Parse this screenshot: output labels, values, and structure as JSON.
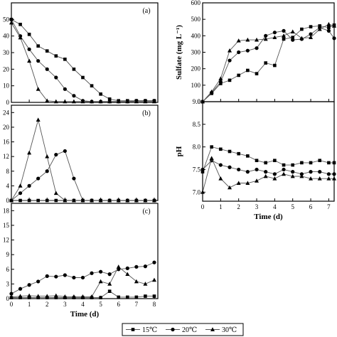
{
  "chart_data": [
    {
      "id": "a",
      "type": "line",
      "panel_label": "(a)",
      "xlim": [
        0,
        8.2
      ],
      "ylim": [
        0,
        60
      ],
      "yticks": [
        "0",
        "10",
        "20",
        "30",
        "40",
        "50"
      ],
      "xticks": [],
      "xlabel": "",
      "ylabel": "",
      "series": [
        {
          "name": "15℃",
          "x": [
            0,
            0.5,
            1,
            1.5,
            2,
            2.5,
            3,
            3.5,
            4,
            4.5,
            5,
            5.5,
            6,
            6.5,
            7,
            7.5,
            8
          ],
          "values": [
            50,
            47,
            41,
            34,
            31,
            28,
            26,
            20,
            15,
            10,
            5,
            2,
            1,
            1,
            1,
            1,
            1
          ]
        },
        {
          "name": "20℃",
          "x": [
            0,
            0.5,
            1,
            1.5,
            2,
            2.5,
            3,
            3.5,
            4,
            4.5,
            5,
            5.5,
            6,
            6.5,
            7,
            7.5,
            8
          ],
          "values": [
            50,
            40,
            32,
            25,
            20,
            15,
            8,
            4,
            1,
            0.5,
            0.5,
            0.5,
            0.5,
            0.5,
            1,
            1,
            1
          ]
        },
        {
          "name": "30℃",
          "x": [
            0,
            0.5,
            1,
            1.5,
            2,
            2.5,
            3,
            3.5,
            4,
            4.5,
            5,
            5.5,
            6,
            6.5,
            7,
            7.5,
            8
          ],
          "values": [
            48,
            39,
            25,
            8,
            1,
            0.5,
            0.5,
            0.5,
            0.5,
            0.5,
            0.5,
            0.5,
            0.5,
            0.5,
            0.5,
            0.5,
            0.5
          ]
        }
      ]
    },
    {
      "id": "b",
      "type": "line",
      "panel_label": "(b)",
      "xlim": [
        0,
        8.2
      ],
      "ylim": [
        0,
        26
      ],
      "yticks": [
        "0",
        "4",
        "8",
        "12",
        "16",
        "20",
        "24"
      ],
      "xticks": [],
      "xlabel": "",
      "ylabel": "",
      "series": [
        {
          "name": "15℃",
          "x": [
            0,
            0.5,
            1,
            1.5,
            2,
            2.5,
            3,
            3.5,
            4,
            4.5,
            5,
            5.5,
            6,
            6.5,
            7,
            7.5,
            8
          ],
          "values": [
            0,
            0,
            0,
            0,
            0,
            0,
            0,
            0,
            0,
            0,
            0,
            0,
            0,
            0,
            0,
            0,
            0
          ]
        },
        {
          "name": "20℃",
          "x": [
            0,
            0.5,
            1,
            1.5,
            2,
            2.5,
            3,
            3.5,
            4,
            4.5,
            5,
            5.5,
            6,
            6.5,
            7,
            7.5,
            8
          ],
          "values": [
            0,
            2,
            4,
            6,
            8,
            12.5,
            13.5,
            6,
            0,
            0,
            0,
            0,
            0,
            0,
            0,
            0,
            0
          ]
        },
        {
          "name": "30℃",
          "x": [
            0,
            0.5,
            1,
            1.5,
            2,
            2.5,
            3,
            3.5,
            4,
            4.5,
            5,
            5.5,
            6,
            6.5,
            7,
            7.5,
            8
          ],
          "values": [
            0,
            4,
            13,
            22,
            12,
            2,
            0,
            0,
            0,
            0,
            0,
            0,
            0,
            0,
            0,
            0,
            0
          ]
        }
      ]
    },
    {
      "id": "c",
      "type": "line",
      "panel_label": "(c)",
      "xlim": [
        0,
        8.2
      ],
      "ylim": [
        0,
        19.5
      ],
      "yticks": [
        "0",
        "3",
        "6",
        "9",
        "12",
        "15",
        "18"
      ],
      "xticks": [
        "0",
        "1",
        "2",
        "3",
        "4",
        "5",
        "6",
        "7",
        "8"
      ],
      "xlabel": "Time (d)",
      "ylabel": "",
      "series": [
        {
          "name": "15℃",
          "x": [
            0,
            0.5,
            1,
            1.5,
            2,
            2.5,
            3,
            3.5,
            4,
            4.5,
            5,
            5.5,
            6,
            6.5,
            7,
            7.5,
            8
          ],
          "values": [
            0.2,
            0.2,
            0.2,
            0.2,
            0.2,
            0.2,
            0.2,
            0.2,
            0.2,
            0.2,
            0.2,
            1.5,
            0.3,
            0.3,
            0.3,
            0.5,
            0.5
          ]
        },
        {
          "name": "20℃",
          "x": [
            0,
            0.5,
            1,
            1.5,
            2,
            2.5,
            3,
            3.5,
            4,
            4.5,
            5,
            5.5,
            6,
            6.5,
            7,
            7.5,
            8
          ],
          "values": [
            1,
            2,
            2.8,
            3.5,
            4.6,
            4.5,
            4.8,
            4.3,
            4.3,
            5.2,
            5.5,
            5,
            6,
            6.2,
            6.5,
            6.6,
            7.4
          ]
        },
        {
          "name": "30℃",
          "x": [
            0,
            0.5,
            1,
            1.5,
            2,
            2.5,
            3,
            3.5,
            4,
            4.5,
            5,
            5.5,
            6,
            6.5,
            7,
            7.5,
            8
          ],
          "values": [
            0.3,
            0.5,
            0.6,
            0.5,
            0.5,
            0.6,
            0.4,
            0.4,
            0.4,
            0.4,
            3.5,
            3,
            6.5,
            5,
            3.5,
            3,
            3.8
          ]
        }
      ]
    },
    {
      "id": "d",
      "type": "line",
      "panel_label": "",
      "xlim": [
        0,
        7.3
      ],
      "ylim": [
        0,
        600
      ],
      "yticks": [
        "0",
        "100",
        "200",
        "300",
        "400",
        "500",
        "600"
      ],
      "xticks": [],
      "xlabel": "",
      "ylabel": "Sulfate (mg L⁻¹)",
      "series": [
        {
          "name": "15℃",
          "x": [
            0,
            0.5,
            1,
            1.5,
            2,
            2.5,
            3,
            3.5,
            4,
            4.5,
            5,
            5.5,
            6,
            6.5,
            7,
            7.3
          ],
          "values": [
            0,
            50,
            110,
            130,
            160,
            190,
            170,
            235,
            220,
            380,
            390,
            440,
            455,
            460,
            450,
            465
          ]
        },
        {
          "name": "20℃",
          "x": [
            0,
            0.5,
            1,
            1.5,
            2,
            2.5,
            3,
            3.5,
            4,
            4.5,
            5,
            5.5,
            6,
            6.5,
            7,
            7.3
          ],
          "values": [
            0,
            55,
            120,
            250,
            300,
            310,
            325,
            400,
            420,
            430,
            375,
            380,
            410,
            450,
            430,
            385
          ]
        },
        {
          "name": "30℃",
          "x": [
            0,
            0.5,
            1,
            1.5,
            2,
            2.5,
            3,
            3.5,
            4,
            4.5,
            5,
            5.5,
            6,
            6.5,
            7,
            7.3
          ],
          "values": [
            0,
            60,
            140,
            310,
            370,
            375,
            375,
            380,
            390,
            400,
            425,
            385,
            390,
            440,
            470,
            460
          ]
        }
      ]
    },
    {
      "id": "e",
      "type": "line",
      "panel_label": "",
      "xlim": [
        0,
        7.3
      ],
      "ylim": [
        6.8,
        9.0
      ],
      "yticks": [
        "7.0",
        "7.5",
        "8.0",
        "8.5",
        "9.0"
      ],
      "xticks": [
        "0",
        "1",
        "2",
        "3",
        "4",
        "5",
        "6",
        "7"
      ],
      "xlabel": "Time (d)",
      "ylabel": "pH",
      "series": [
        {
          "name": "15℃",
          "x": [
            0,
            0.5,
            1,
            1.5,
            2,
            2.5,
            3,
            3.5,
            4,
            4.5,
            5,
            5.5,
            6,
            6.5,
            7,
            7.3
          ],
          "values": [
            7.45,
            8.0,
            7.95,
            7.9,
            7.85,
            7.8,
            7.7,
            7.65,
            7.7,
            7.6,
            7.6,
            7.65,
            7.65,
            7.7,
            7.65,
            7.65
          ]
        },
        {
          "name": "20℃",
          "x": [
            0,
            0.5,
            1,
            1.5,
            2,
            2.5,
            3,
            3.5,
            4,
            4.5,
            5,
            5.5,
            6,
            6.5,
            7,
            7.3
          ],
          "values": [
            7.5,
            7.7,
            7.6,
            7.55,
            7.5,
            7.45,
            7.5,
            7.45,
            7.4,
            7.5,
            7.45,
            7.4,
            7.45,
            7.45,
            7.4,
            7.4
          ]
        },
        {
          "name": "30℃",
          "x": [
            0,
            0.5,
            1,
            1.5,
            2,
            2.5,
            3,
            3.5,
            4,
            4.5,
            5,
            5.5,
            6,
            6.5,
            7,
            7.3
          ],
          "values": [
            7.0,
            7.75,
            7.3,
            7.1,
            7.2,
            7.2,
            7.25,
            7.35,
            7.3,
            7.4,
            7.35,
            7.35,
            7.3,
            7.3,
            7.3,
            7.3
          ]
        }
      ]
    }
  ],
  "legend": {
    "entries": [
      {
        "label": "15℃",
        "marker": "square"
      },
      {
        "label": "20℃",
        "marker": "circle"
      },
      {
        "label": "30℃",
        "marker": "triangle"
      }
    ]
  },
  "colors": {
    "line": "#555555",
    "marker": "#000000",
    "axis": "#000000"
  }
}
